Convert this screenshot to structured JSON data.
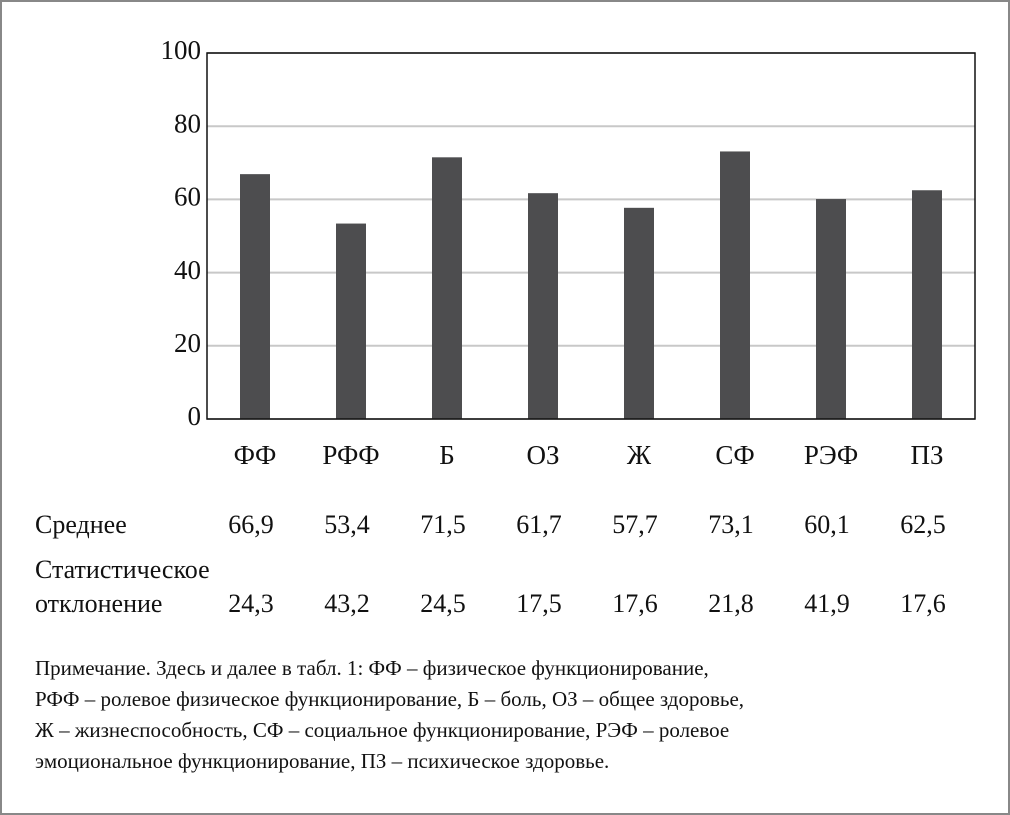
{
  "chart_data": {
    "type": "bar",
    "categories": [
      "ФФ",
      "РФФ",
      "Б",
      "ОЗ",
      "Ж",
      "СФ",
      "РЭФ",
      "ПЗ"
    ],
    "series": [
      {
        "name": "Среднее",
        "color": "#4d4d4f",
        "values": [
          66.9,
          53.4,
          71.5,
          61.7,
          57.7,
          73.1,
          60.1,
          62.5
        ],
        "value_labels": [
          "66,9",
          "53,4",
          "71,5",
          "61,7",
          "57,7",
          "73,1",
          "60,1",
          "62,5"
        ]
      }
    ],
    "deviation": {
      "name": "Статистическое отклонение",
      "values": [
        24.3,
        43.2,
        24.5,
        17.5,
        17.6,
        21.8,
        41.9,
        17.6
      ],
      "value_labels": [
        "24,3",
        "43,2",
        "24,5",
        "17,5",
        "17,6",
        "21,8",
        "41,9",
        "17,6"
      ]
    },
    "ylim": [
      0,
      100
    ],
    "yticks": [
      0,
      20,
      40,
      60,
      80,
      100
    ],
    "grid": true,
    "note_lines": [
      "Примечание. Здесь и далее в табл. 1: ФФ – физическое функционирование,",
      "РФФ – ролевое физическое функционирование, Б – боль, ОЗ – общее здоровье,",
      "Ж – жизнеспособность, СФ – социальное функционирование, РЭФ – ролевое",
      "эмоциональное функционирование, ПЗ – психическое здоровье."
    ]
  }
}
